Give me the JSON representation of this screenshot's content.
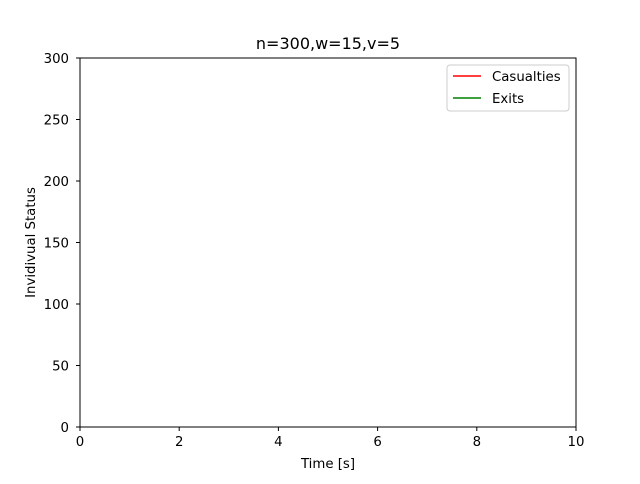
{
  "chart_data": {
    "type": "line",
    "title": "n=300,w=15,v=5",
    "xlabel": "Time [s]",
    "ylabel": "Invidivual Status",
    "xlim": [
      0,
      10
    ],
    "ylim": [
      0,
      300
    ],
    "x_ticks": [
      0,
      2,
      4,
      6,
      8,
      10
    ],
    "y_ticks": [
      0,
      50,
      100,
      150,
      200,
      250,
      300
    ],
    "grid": false,
    "legend_position": "upper right",
    "series": [
      {
        "name": "Casualties",
        "color": "#ff0000",
        "x": [],
        "y": []
      },
      {
        "name": "Exits",
        "color": "#008000",
        "x": [],
        "y": []
      }
    ]
  }
}
